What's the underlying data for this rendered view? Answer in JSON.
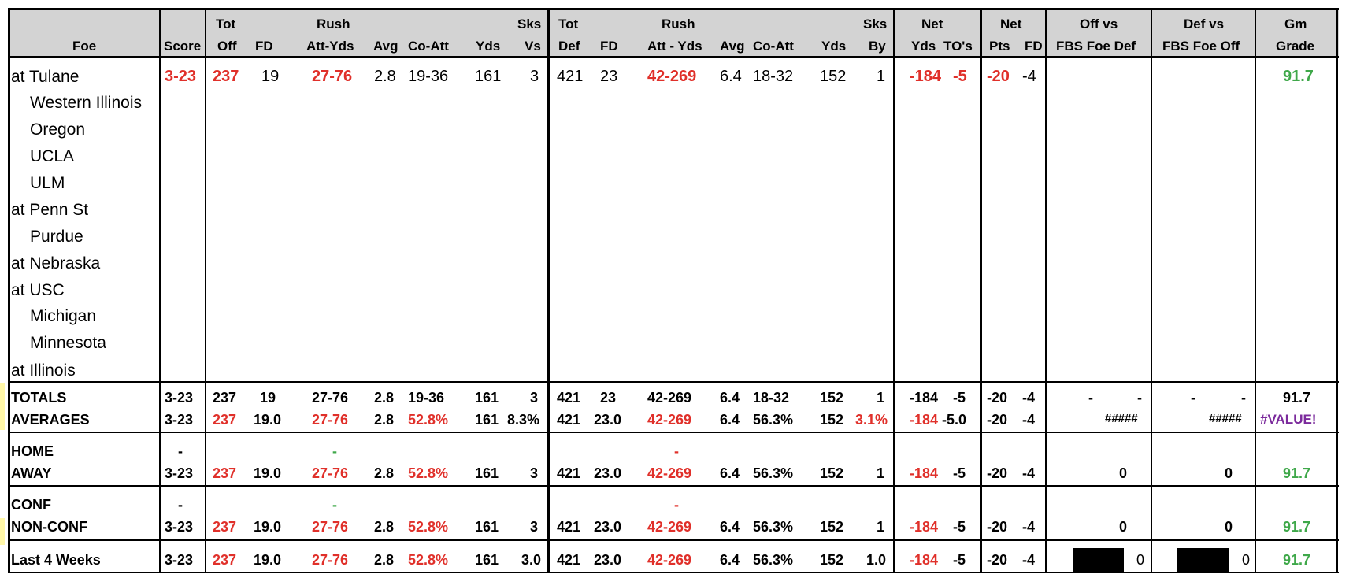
{
  "header": {
    "foe": "Foe",
    "score": "Score",
    "tot1": "Tot",
    "off": "Off",
    "fd": "FD",
    "rush": "Rush",
    "att_yds": "Att-Yds",
    "avg": "Avg",
    "co_att": "Co-Att",
    "yds": "Yds",
    "sks": "Sks",
    "vs": "Vs",
    "tot2": "Tot",
    "def": "Def",
    "att_yds2": "Att - Yds",
    "by": "By",
    "net": "Net",
    "tos": "TO's",
    "net2": "Net",
    "pts": "Pts",
    "off_vs": "Off vs",
    "fbs_foe_def": "FBS Foe Def",
    "def_vs": "Def vs",
    "fbs_foe_off": "FBS Foe Off",
    "gm": "Gm",
    "grade": "Grade"
  },
  "opponents": [
    "at Tulane",
    "Western Illinois",
    "Oregon",
    "UCLA",
    "ULM",
    "at Penn St",
    "Purdue",
    "at Nebraska",
    "at USC",
    "Michigan",
    "Minnesota",
    "at Illinois"
  ],
  "game1": {
    "score": "3-23",
    "tot_off": "237",
    "fd": "19",
    "rush": "27-76",
    "avg": "2.8",
    "co_att": "19-36",
    "yds": "161",
    "sks_vs": "3",
    "tot_def": "421",
    "dfd": "23",
    "drush": "42-269",
    "davg": "6.4",
    "dco_att": "18-32",
    "dyds": "152",
    "sks_by": "1",
    "net_yds": "-184",
    "net_to": "-5",
    "net_pts": "-20",
    "net_fd": "-4",
    "grade": "91.7"
  },
  "totals": {
    "label": "TOTALS",
    "score": "3-23",
    "tot_off": "237",
    "fd": "19",
    "rush": "27-76",
    "avg": "2.8",
    "co_att": "19-36",
    "yds": "161",
    "sks": "3",
    "tot_def": "421",
    "dfd": "23",
    "drush": "42-269",
    "davg": "6.4",
    "dco_att": "18-32",
    "dyds": "152",
    "sks_by": "1",
    "net_yds": "-184",
    "net_to": "-5",
    "net_pts": "-20",
    "net_fd": "-4",
    "d1": "-",
    "d2": "-",
    "d3": "-",
    "d4": "-",
    "grade": "91.7"
  },
  "averages": {
    "label": "AVERAGES",
    "score": "3-23",
    "tot_off": "237",
    "fd": "19.0",
    "rush": "27-76",
    "avg": "2.8",
    "co_att": "52.8%",
    "yds": "161",
    "sks": "8.3%",
    "tot_def": "421",
    "dfd": "23.0",
    "drush": "42-269",
    "davg": "6.4",
    "dco_att": "56.3%",
    "dyds": "152",
    "sks_by": "3.1%",
    "net_yds": "-184",
    "net_to": "-5.0",
    "net_pts": "-20",
    "net_fd": "-4",
    "offvs": "#####",
    "defvs": "#####",
    "grade": "#VALUE!"
  },
  "home": {
    "label": "HOME",
    "score": "-",
    "rush": "-",
    "drush": "-"
  },
  "away": {
    "label": "AWAY",
    "score": "3-23",
    "tot_off": "237",
    "fd": "19.0",
    "rush": "27-76",
    "avg": "2.8",
    "co_att": "52.8%",
    "yds": "161",
    "sks": "3",
    "tot_def": "421",
    "dfd": "23.0",
    "drush": "42-269",
    "davg": "6.4",
    "dco_att": "56.3%",
    "dyds": "152",
    "sks_by": "1",
    "net_yds": "-184",
    "net_to": "-5",
    "net_pts": "-20",
    "net_fd": "-4",
    "offvs": "0",
    "defvs": "0",
    "grade": "91.7"
  },
  "conf": {
    "label": "CONF",
    "score": "-",
    "rush": "-",
    "drush": "-"
  },
  "nonconf": {
    "label": "NON-CONF",
    "score": "3-23",
    "tot_off": "237",
    "fd": "19.0",
    "rush": "27-76",
    "avg": "2.8",
    "co_att": "52.8%",
    "yds": "161",
    "sks": "3",
    "tot_def": "421",
    "dfd": "23.0",
    "drush": "42-269",
    "davg": "6.4",
    "dco_att": "56.3%",
    "dyds": "152",
    "sks_by": "1",
    "net_yds": "-184",
    "net_to": "-5",
    "net_pts": "-20",
    "net_fd": "-4",
    "offvs": "0",
    "defvs": "0",
    "grade": "91.7"
  },
  "last4": {
    "label": "Last 4 Weeks",
    "score": "3-23",
    "tot_off": "237",
    "fd": "19.0",
    "rush": "27-76",
    "avg": "2.8",
    "co_att": "52.8%",
    "yds": "161",
    "sks": "3.0",
    "tot_def": "421",
    "dfd": "23.0",
    "drush": "42-269",
    "davg": "6.4",
    "dco_att": "56.3%",
    "dyds": "152",
    "sks_by": "1.0",
    "net_yds": "-184",
    "net_to": "-5",
    "net_pts": "-20",
    "net_fd": "-4",
    "offvs": "0",
    "defvs": "0",
    "grade": "91.7"
  },
  "colors": {
    "red": "#e0302a",
    "green": "#3fa84a",
    "purple": "#7b2a9c",
    "header_bg": "#d3d3d3"
  }
}
